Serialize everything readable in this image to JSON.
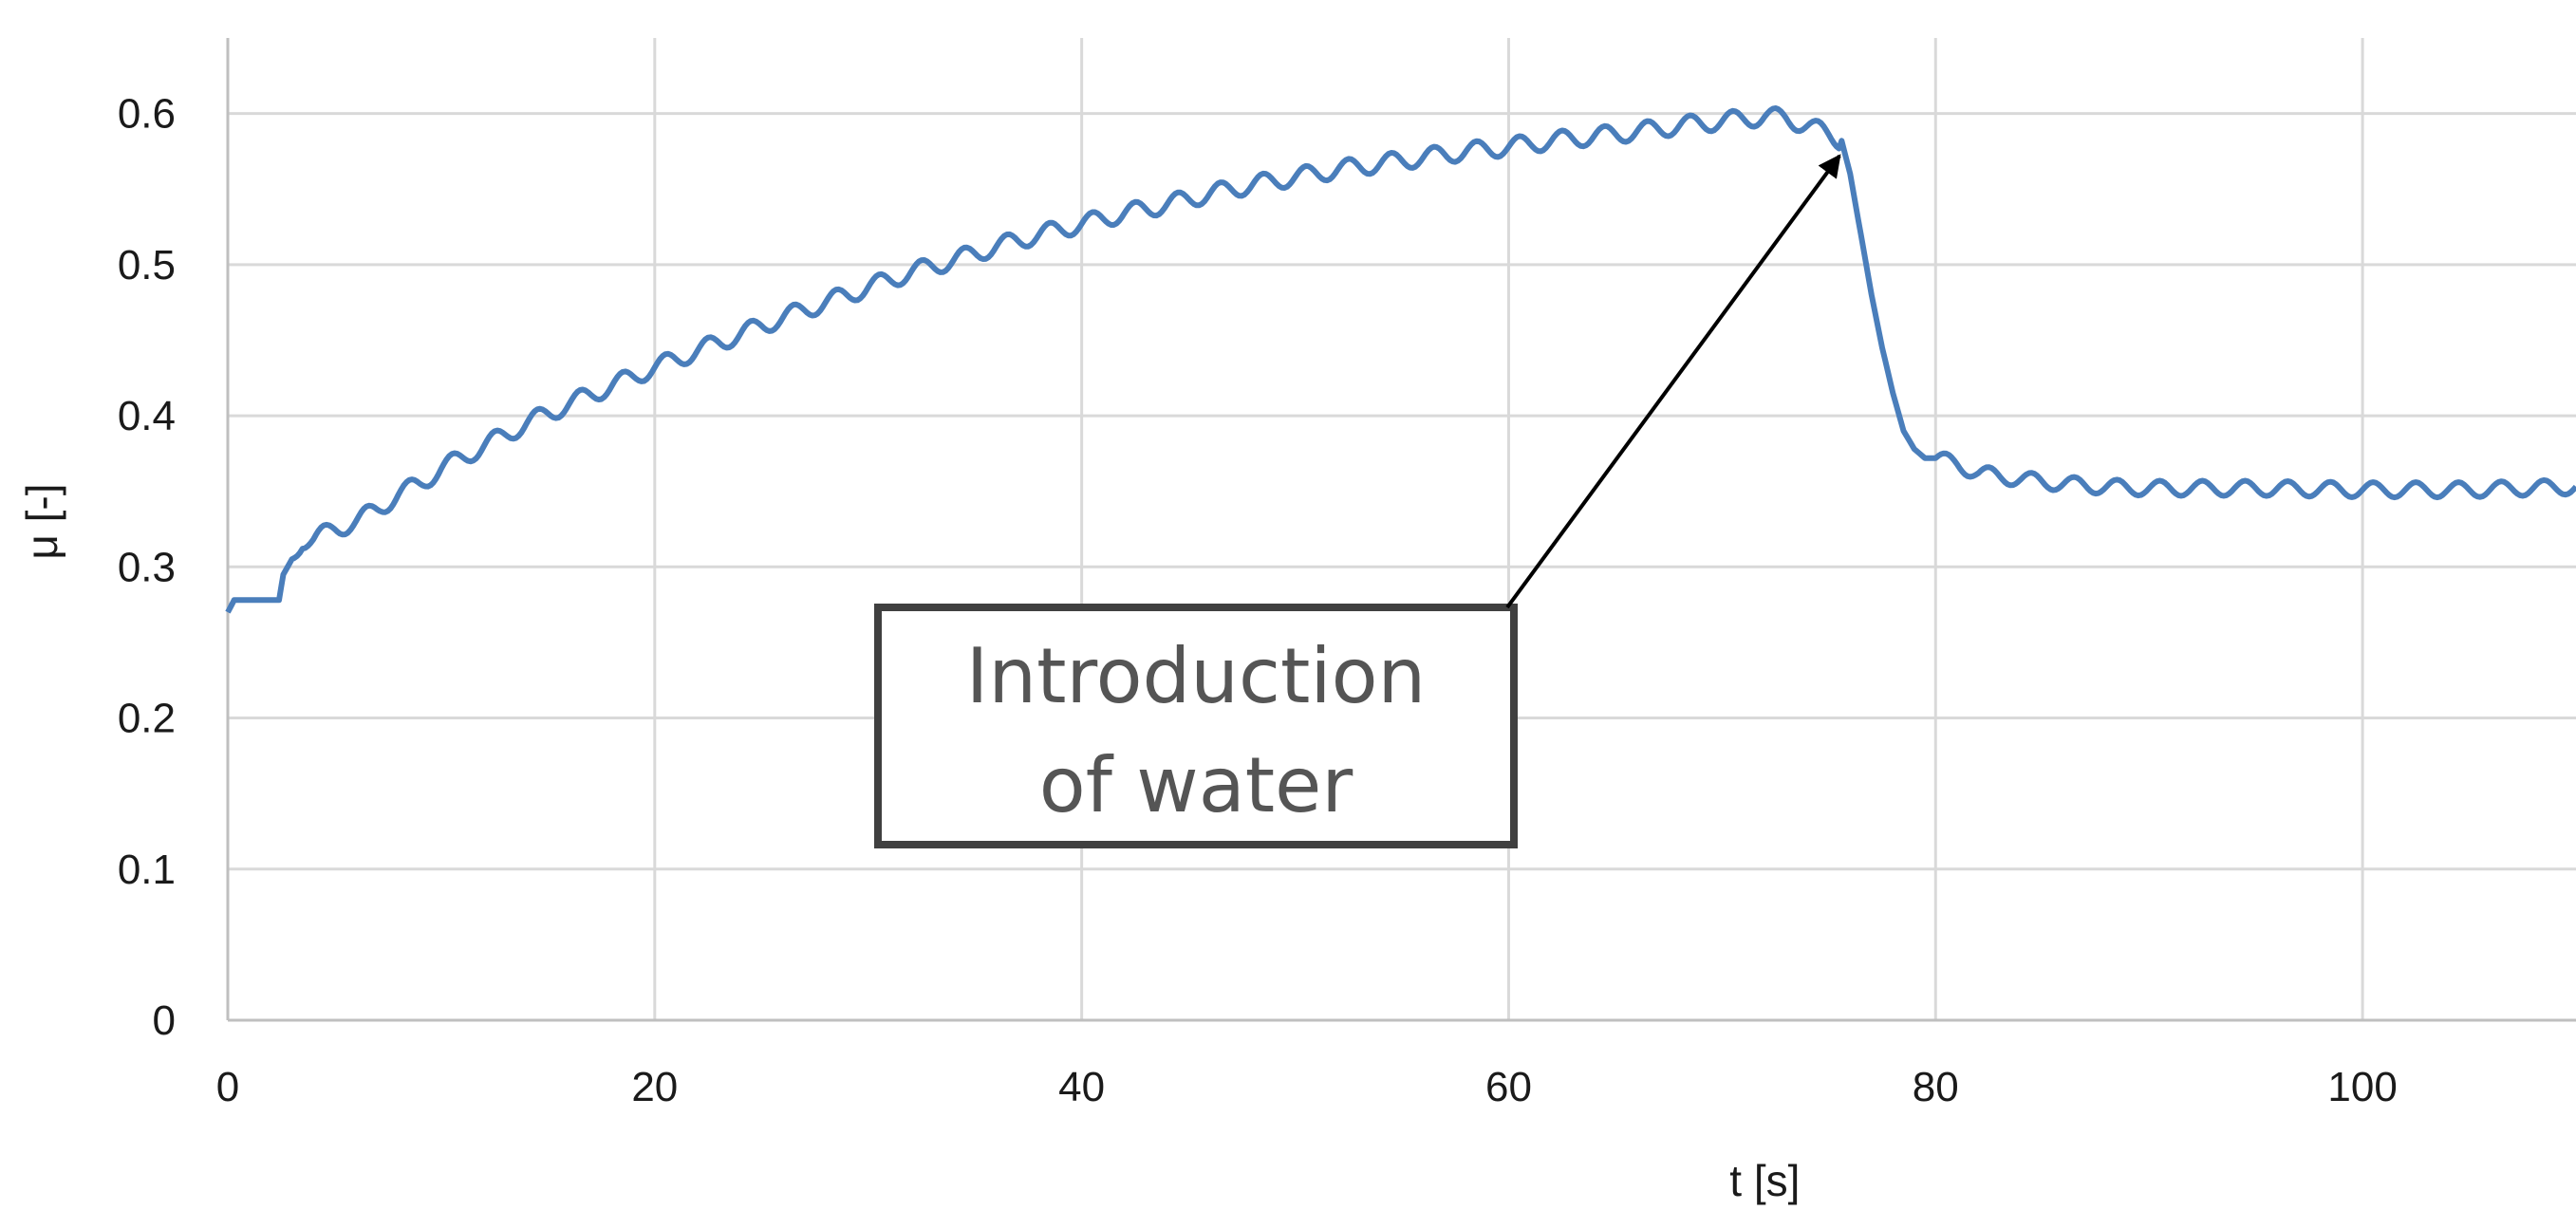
{
  "chart_data": {
    "type": "line",
    "title": "",
    "xlabel": "t [s]",
    "ylabel": "μ [-]",
    "xlim": [
      0,
      110
    ],
    "ylim": [
      0,
      0.65
    ],
    "xticks": [
      0,
      20,
      40,
      60,
      80,
      100
    ],
    "yticks": [
      0,
      0.1,
      0.2,
      0.3,
      0.4,
      0.5,
      0.6
    ],
    "xtick_labels": [
      "0",
      "20",
      "40",
      "60",
      "80",
      "100"
    ],
    "ytick_labels": [
      "0",
      "0.1",
      "0.2",
      "0.3",
      "0.4",
      "0.5",
      "0.6"
    ],
    "grid": true,
    "legend": "none",
    "series": [
      {
        "name": "μ",
        "color": "#4a7ebb",
        "x": [
          0,
          0.3,
          1,
          2,
          2.4,
          2.6,
          3,
          3.5,
          4,
          5,
          6,
          7,
          8,
          9,
          10,
          12,
          14,
          16,
          18,
          20,
          22,
          24,
          26,
          28,
          30,
          32,
          34,
          36,
          38,
          40,
          42,
          44,
          46,
          48,
          50,
          52,
          54,
          56,
          58,
          60,
          62,
          64,
          66,
          68,
          70,
          72,
          73,
          74,
          75,
          75.6,
          76,
          76.5,
          77,
          77.5,
          78,
          78.5,
          79,
          79.5,
          80,
          81,
          82,
          84,
          86,
          88,
          90,
          95,
          100,
          105,
          110
        ],
        "y": [
          0.27,
          0.278,
          0.278,
          0.278,
          0.278,
          0.295,
          0.305,
          0.318,
          0.318,
          0.325,
          0.33,
          0.338,
          0.348,
          0.355,
          0.365,
          0.38,
          0.395,
          0.408,
          0.42,
          0.432,
          0.443,
          0.454,
          0.465,
          0.475,
          0.485,
          0.495,
          0.503,
          0.512,
          0.52,
          0.527,
          0.534,
          0.54,
          0.547,
          0.553,
          0.558,
          0.563,
          0.567,
          0.571,
          0.575,
          0.578,
          0.582,
          0.585,
          0.588,
          0.592,
          0.595,
          0.598,
          0.597,
          0.592,
          0.586,
          0.582,
          0.56,
          0.52,
          0.48,
          0.445,
          0.415,
          0.39,
          0.378,
          0.372,
          0.372,
          0.368,
          0.362,
          0.358,
          0.355,
          0.353,
          0.352,
          0.352,
          0.351,
          0.351,
          0.353
        ]
      }
    ],
    "annotations": [
      {
        "text_lines": [
          "Introduction",
          "of water"
        ],
        "arrow_target": {
          "x": 75.5,
          "y": 0.572
        },
        "arrow_start": {
          "x": 60,
          "y": 0.27
        }
      }
    ]
  }
}
